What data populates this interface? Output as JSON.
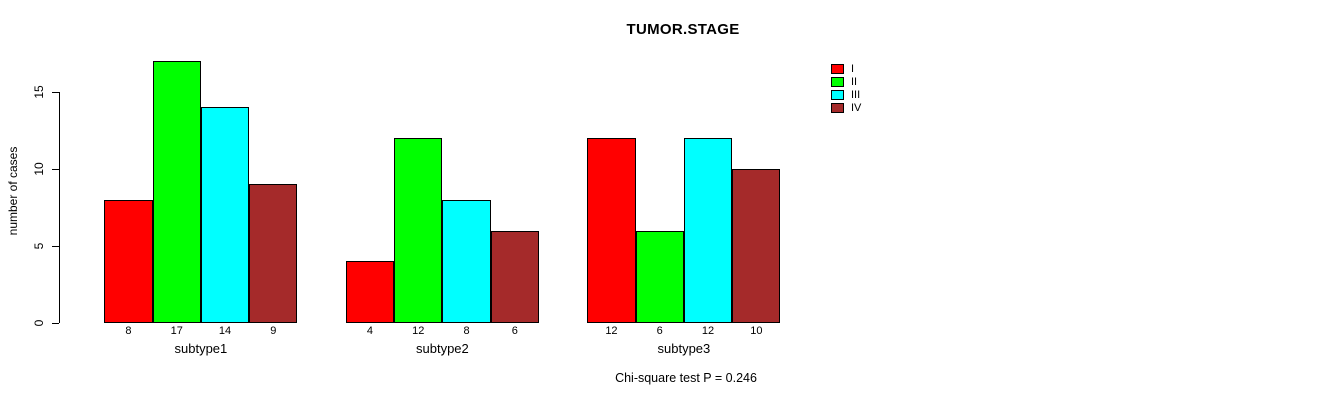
{
  "chart_data": {
    "type": "bar",
    "title": "TUMOR.STAGE",
    "ylabel": "number of cases",
    "xlabel": "",
    "categories": [
      "subtype1",
      "subtype2",
      "subtype3"
    ],
    "series": [
      {
        "name": "I",
        "color": "#FF0000",
        "values": [
          8,
          4,
          12
        ]
      },
      {
        "name": "II",
        "color": "#00FF00",
        "values": [
          17,
          12,
          6
        ]
      },
      {
        "name": "III",
        "color": "#00FFFF",
        "values": [
          14,
          8,
          12
        ]
      },
      {
        "name": "IV",
        "color": "#A52A2A",
        "values": [
          9,
          6,
          10
        ]
      }
    ],
    "yticks": [
      "0",
      "5",
      "10",
      "15"
    ],
    "ylim": [
      0,
      15
    ],
    "grid": false,
    "bar_value_labels": true,
    "legend_position": "top-right",
    "annotation": "Chi-square test P = 0.246"
  },
  "colors": {
    "background": "#FFFFFF",
    "axis": "#000000",
    "text": "#000000"
  }
}
